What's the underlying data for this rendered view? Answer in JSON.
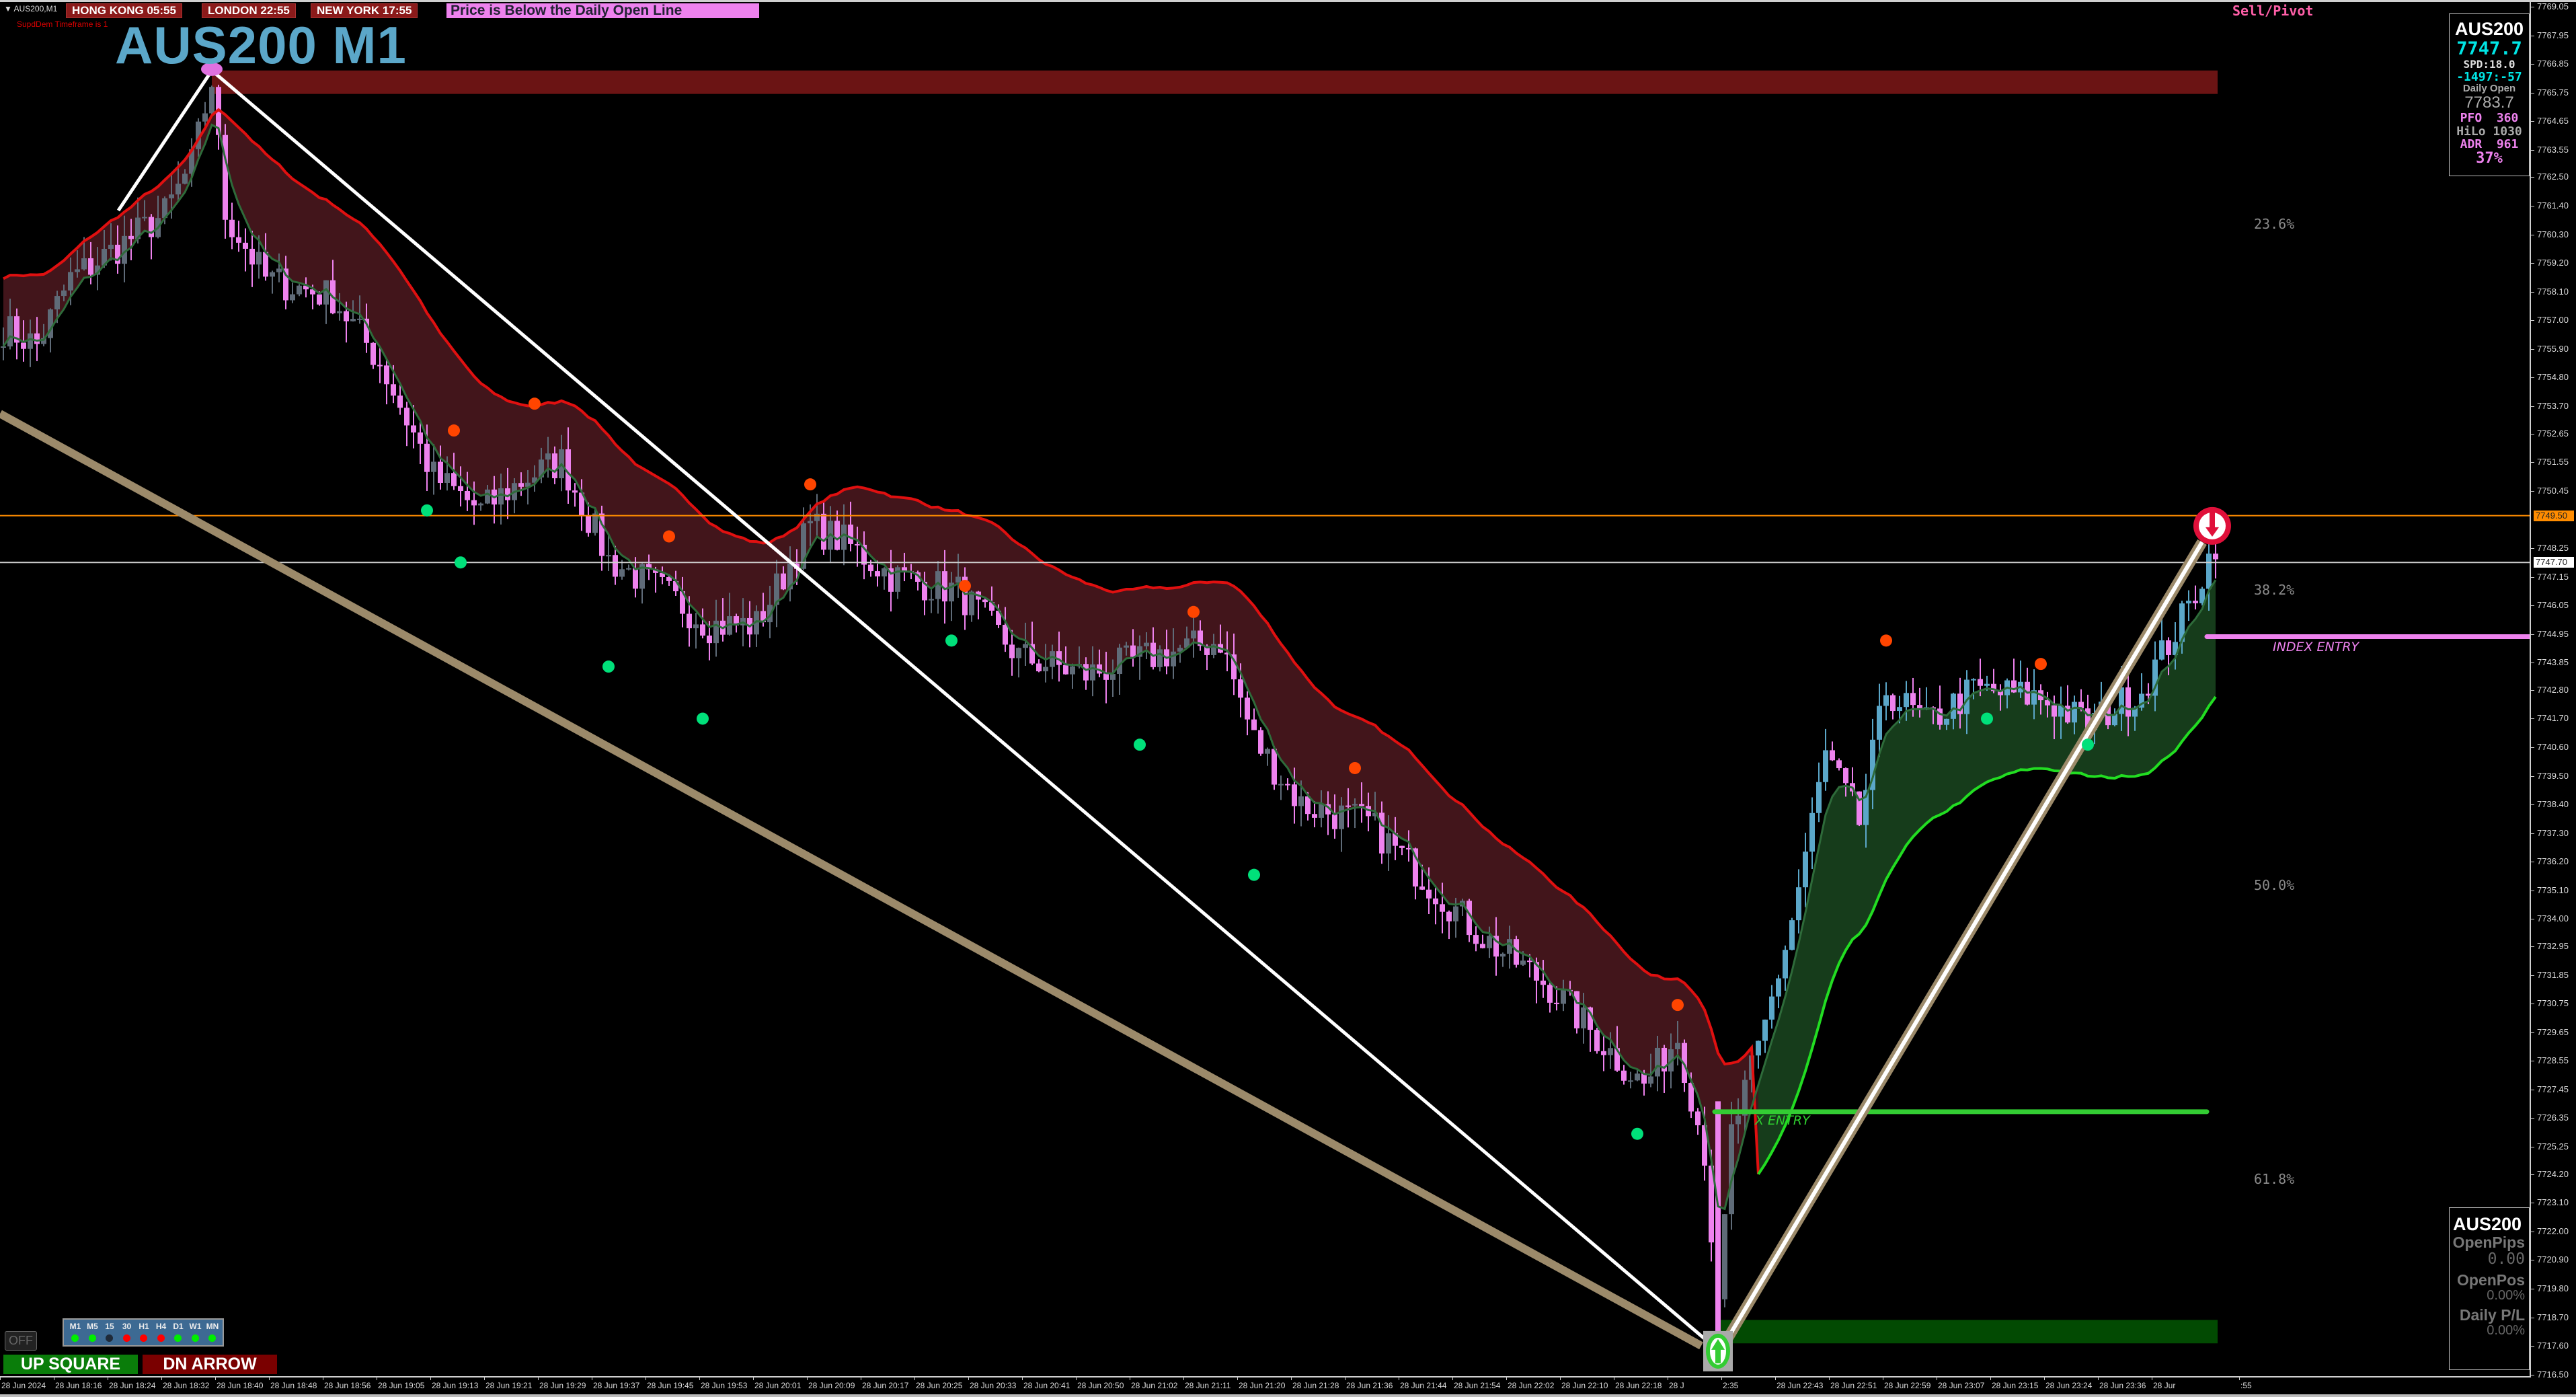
{
  "window": {
    "symbol_tab": "▼ AUS200,M1",
    "title": "AUS200 M1",
    "supdem_note": "SupdDem Timeframe is 1"
  },
  "clocks": [
    {
      "label": "HONG KONG  05:55"
    },
    {
      "label": "LONDON  22:55"
    },
    {
      "label": "NEW YORK  17:55"
    }
  ],
  "daily_message": "Price is Below the Daily Open Line",
  "sell_pivot_label": "Sell/Pivot",
  "colors": {
    "bear_candle": "#ee82ee",
    "bull_candle": "#5ba7c9",
    "neutral_candle": "#5f6b78",
    "bear_band": "#e01010",
    "bull_band": "#22dd22",
    "supply_zone": "#6b1414",
    "demand_zone": "#024a02",
    "orange_line": "#ff8c00",
    "title": "#5ba7c9"
  },
  "info_panel": {
    "symbol": "AUS200",
    "price": "7747.7",
    "spread": "SPD:18.0",
    "change": "-1497:-57",
    "daily_open_label": "Daily Open",
    "daily_open": "7783.7",
    "pfo_label": "PFO",
    "pfo": "360",
    "hilo_label": "HiLo",
    "hilo": "1030",
    "adr_label": "ADR",
    "adr": "961",
    "adr_pct": "37%"
  },
  "trade_panel": {
    "symbol": "AUS200",
    "open_pips_label": "OpenPips",
    "open_pips": "0.00",
    "open_pos_label": "OpenPos",
    "open_pos": "0.00%",
    "daily_pl_label": "Daily P/L",
    "daily_pl": "0.00%"
  },
  "fib_levels": [
    {
      "label": "23.6%",
      "price": 7760.7
    },
    {
      "label": "38.2%",
      "price": 7746.65
    },
    {
      "label": "50.0%",
      "price": 7735.3
    },
    {
      "label": "61.8%",
      "price": 7724.0
    }
  ],
  "lines": {
    "orange_level": {
      "price": 7749.5,
      "tag": "7749.50"
    },
    "bid_level": {
      "price": 7747.7,
      "tag": "7747.70"
    },
    "index_entry": {
      "price": 7744.85,
      "label": "INDEX ENTRY"
    },
    "long_entry": {
      "price": 7726.6,
      "label": "X ENTRY"
    }
  },
  "zones": {
    "supply": {
      "top": 7766.6,
      "bottom": 7765.7,
      "from": "18:39"
    },
    "demand": {
      "top": 7718.6,
      "bottom": 7717.7,
      "from": "22:23"
    }
  },
  "y_axis": [
    "7769.05",
    "7767.95",
    "7766.85",
    "7765.75",
    "7764.65",
    "7763.55",
    "7762.50",
    "7761.40",
    "7760.30",
    "7759.20",
    "7758.10",
    "7757.00",
    "7755.90",
    "7754.80",
    "7753.70",
    "7752.65",
    "7751.55",
    "7750.45",
    "7748.25",
    "7747.15",
    "7746.05",
    "7744.95",
    "7743.85",
    "7742.80",
    "7741.70",
    "7740.60",
    "7739.50",
    "7738.40",
    "7737.30",
    "7736.20",
    "7735.10",
    "7734.00",
    "7732.95",
    "7731.85",
    "7730.75",
    "7729.65",
    "7728.55",
    "7727.45",
    "7726.35",
    "7725.25",
    "7724.20",
    "7723.10",
    "7722.00",
    "7720.90",
    "7719.80",
    "7718.70",
    "7717.60",
    "7716.50"
  ],
  "x_axis": [
    "28 Jun 2024",
    "28 Jun 18:16",
    "28 Jun 18:24",
    "28 Jun 18:32",
    "28 Jun 18:40",
    "28 Jun 18:48",
    "28 Jun 18:56",
    "28 Jun 19:05",
    "28 Jun 19:13",
    "28 Jun 19:21",
    "28 Jun 19:29",
    "28 Jun 19:37",
    "28 Jun 19:45",
    "28 Jun 19:53",
    "28 Jun 20:01",
    "28 Jun 20:09",
    "28 Jun 20:17",
    "28 Jun 20:25",
    "28 Jun 20:33",
    "28 Jun 20:41",
    "28 Jun 20:50",
    "28 Jun 21:02",
    "28 Jun 21:11",
    "28 Jun 21:20",
    "28 Jun 21:28",
    "28 Jun 21:36",
    "28 Jun 21:44",
    "28 Jun 21:54",
    "28 Jun 22:02",
    "28 Jun 22:10",
    "28 Jun 22:18",
    "28 J",
    "2:35",
    "28 Jun 22:43",
    "28 Jun 22:51",
    "28 Jun 22:59",
    "28 Jun 23:07",
    "28 Jun 23:15",
    "28 Jun 23:24",
    "28 Jun 23:36",
    "28 Jur",
    ":55"
  ],
  "price_path": [
    [
      "18:08",
      7756.7
    ],
    [
      "18:13",
      7756.05
    ],
    [
      "18:18",
      7758.6
    ],
    [
      "18:25",
      7759.8
    ],
    [
      "18:32",
      7761.1
    ],
    [
      "18:36",
      7763.0
    ],
    [
      "18:39",
      7766.2
    ],
    [
      "18:41",
      7761.1
    ],
    [
      "18:47",
      7758.6
    ],
    [
      "18:57",
      7757.9
    ],
    [
      "19:04",
      7755.4
    ],
    [
      "19:12",
      7751.0
    ],
    [
      "19:19",
      7749.7
    ],
    [
      "19:26",
      7751.0
    ],
    [
      "19:31",
      7751.6
    ],
    [
      "19:38",
      7747.8
    ],
    [
      "19:46",
      7746.6
    ],
    [
      "19:53",
      7745.3
    ],
    [
      "20:00",
      7745.3
    ],
    [
      "20:08",
      7749.1
    ],
    [
      "20:13",
      7748.5
    ],
    [
      "20:20",
      7747.2
    ],
    [
      "20:30",
      7746.6
    ],
    [
      "20:39",
      7744.1
    ],
    [
      "20:49",
      7743.4
    ],
    [
      "20:59",
      7744.1
    ],
    [
      "21:09",
      7744.7
    ],
    [
      "21:14",
      7740.9
    ],
    [
      "21:21",
      7738.4
    ],
    [
      "21:31",
      7737.7
    ],
    [
      "21:38",
      7735.9
    ],
    [
      "21:48",
      7733.3
    ],
    [
      "21:58",
      7731.4
    ],
    [
      "22:07",
      7728.9
    ],
    [
      "22:12",
      7727.6
    ],
    [
      "22:17",
      7729.5
    ],
    [
      "22:21",
      7725.1
    ],
    [
      "22:23",
      7718.8
    ],
    [
      "22:25",
      7725.75
    ],
    [
      "22:29",
      7728.9
    ],
    [
      "22:34",
      7733.96
    ],
    [
      "22:39",
      7740.3
    ],
    [
      "22:44",
      7737.7
    ],
    [
      "22:48",
      7742.8
    ],
    [
      "22:54",
      7741.5
    ],
    [
      "23:01",
      7742.8
    ],
    [
      "23:11",
      7742.5
    ],
    [
      "23:18",
      7741.5
    ],
    [
      "23:26",
      7742.8
    ],
    [
      "23:33",
      7745.95
    ],
    [
      "23:37",
      7748.5
    ]
  ],
  "signals": {
    "highs": [
      [
        "19:15",
        7752.77
      ],
      [
        "19:27",
        7753.8
      ],
      [
        "19:47",
        7748.7
      ],
      [
        "20:08",
        7750.7
      ],
      [
        "20:31",
        7746.8
      ],
      [
        "21:05",
        7745.8
      ],
      [
        "21:29",
        7739.8
      ],
      [
        "22:17",
        7730.7
      ],
      [
        "22:48",
        7744.7
      ],
      [
        "23:11",
        7743.8
      ]
    ],
    "lows": [
      [
        "19:11",
        7749.7
      ],
      [
        "19:16",
        7747.7
      ],
      [
        "19:38",
        7743.7
      ],
      [
        "19:52",
        7741.7
      ],
      [
        "20:29",
        7744.7
      ],
      [
        "20:57",
        7740.7
      ],
      [
        "21:14",
        7735.7
      ],
      [
        "22:11",
        7725.75
      ],
      [
        "23:03",
        7741.7
      ],
      [
        "23:18",
        7740.7
      ]
    ]
  },
  "markers": {
    "peak": [
      "18:39",
      7766.6
    ],
    "buy_arrow": [
      "22:23",
      7717.4
    ],
    "sell_arrow": [
      "23:36",
      7749.0
    ]
  },
  "timeframes": [
    {
      "label": "M1",
      "color": "#00ee00"
    },
    {
      "label": "M5",
      "color": "#00ee00"
    },
    {
      "label": "15",
      "color": "#1f2a38"
    },
    {
      "label": "30",
      "color": "#ff0000"
    },
    {
      "label": "H1",
      "color": "#ff0000"
    },
    {
      "label": "H4",
      "color": "#ff0000"
    },
    {
      "label": "D1",
      "color": "#00ee00"
    },
    {
      "label": "W1",
      "color": "#00ee00"
    },
    {
      "label": "MN",
      "color": "#00ee00"
    }
  ],
  "buttons": {
    "off": "OFF",
    "up_square": "UP SQUARE",
    "dn_arrow": "DN ARROW"
  }
}
